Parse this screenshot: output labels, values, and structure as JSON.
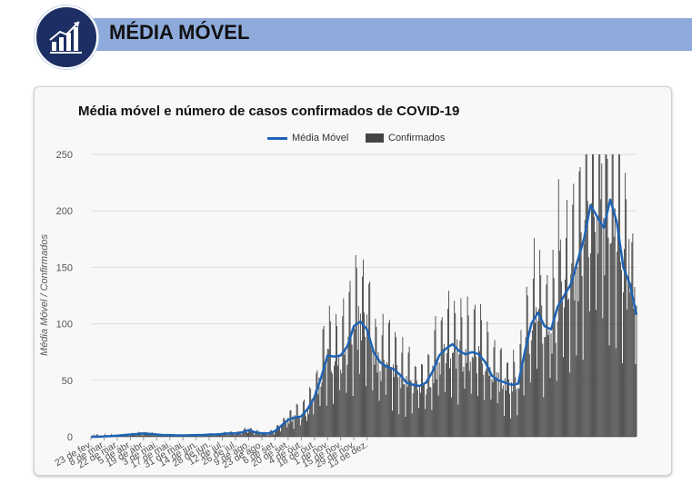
{
  "header": {
    "title": "MÉDIA MÓVEL",
    "logo_icon": "bar-chart-growth-icon"
  },
  "chart_data": {
    "type": "bar",
    "title": "Média móvel e número de casos confirmados de COVID-19",
    "ylabel": "Média Móvel / Confirmados",
    "xlabel": "",
    "ylim": [
      0,
      250
    ],
    "yticks": [
      0,
      50,
      100,
      150,
      200,
      250
    ],
    "grid": true,
    "legend_position": "top-center",
    "colors": {
      "moving_average": "#1f63b4",
      "confirmed": "#444444"
    },
    "x_tick_labels": [
      "23 de fev.",
      "8 de mar.",
      "22 de mar.",
      "5 de abr.",
      "19 de abr.",
      "3 de mai.",
      "17 de mai.",
      "31 de mai.",
      "14 de jun.",
      "28 de jun.",
      "12 de jul.",
      "26 de jul.",
      "9 de ago.",
      "23 de ago.",
      "6 de set.",
      "20 de set.",
      "4 de out.",
      "18 de out.",
      "1 de nov.",
      "15 de nov.",
      "29 de nov.",
      "13 de dez."
    ],
    "series": [
      {
        "name": "Média Móvel",
        "type": "line",
        "weekly_values": [
          0,
          0,
          0.3,
          0.6,
          1,
          1.5,
          2,
          2.5,
          3,
          2.5,
          2,
          1.5,
          1.5,
          1.2,
          1.2,
          1.3,
          1.5,
          1.5,
          2,
          2,
          2.5,
          3,
          3,
          4,
          6,
          4,
          3,
          3,
          5,
          10,
          15,
          17,
          18,
          25,
          35,
          52,
          72,
          71,
          72,
          80,
          98,
          102,
          95,
          75,
          66,
          62,
          60,
          55,
          48,
          46,
          45,
          48,
          58,
          72,
          78,
          82,
          76,
          73,
          75,
          73,
          66,
          54,
          50,
          48,
          46,
          47,
          75,
          100,
          110,
          98,
          95,
          115,
          125,
          135,
          155,
          175,
          205,
          195,
          185,
          210,
          190,
          150,
          135,
          108
        ]
      },
      {
        "name": "Confirmados",
        "type": "bar",
        "peaks": [
          228,
          242,
          246,
          175
        ]
      }
    ]
  }
}
